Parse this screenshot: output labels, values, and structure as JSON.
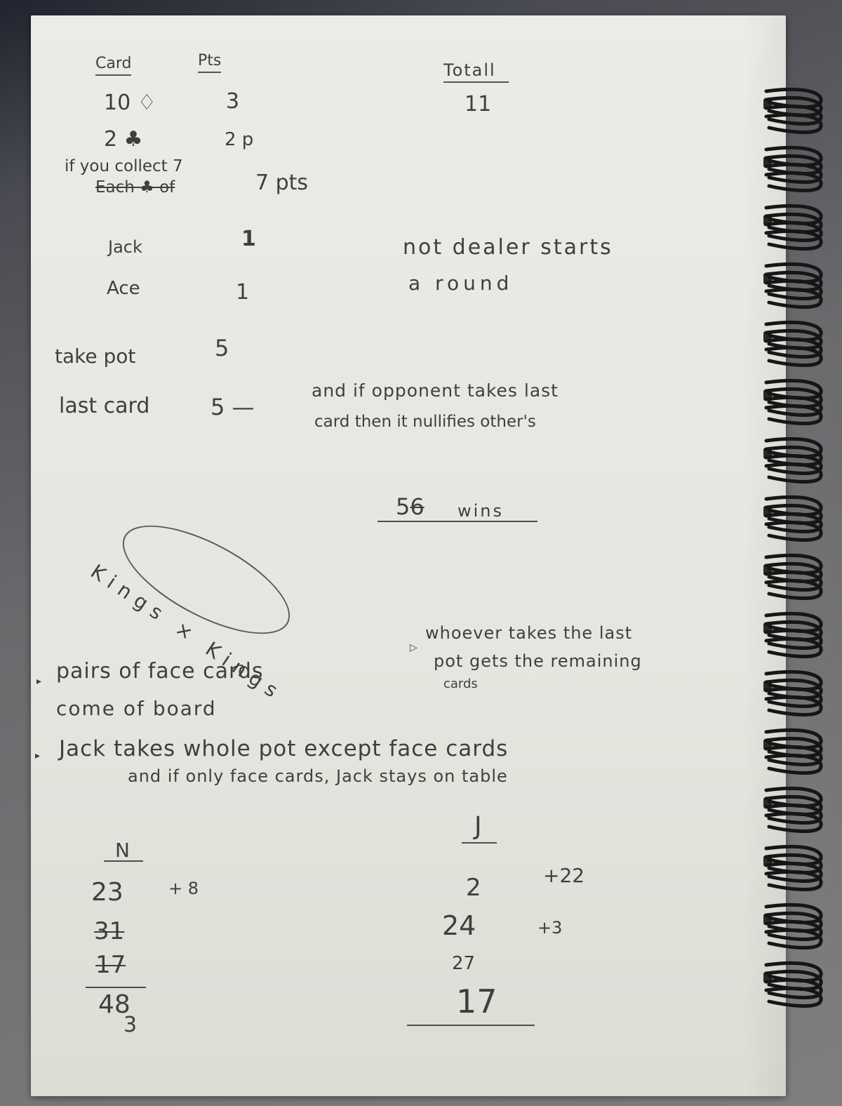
{
  "notes": {
    "col_card": "Card",
    "col_pts": "Pts",
    "col_total": "Totall",
    "total_value": "11",
    "rows": [
      {
        "card": "10 ♢",
        "pts": "3"
      },
      {
        "card": "2 ♣",
        "pts": "2 p"
      },
      {
        "card": "Jack",
        "pts": "1"
      },
      {
        "card": "Ace",
        "pts": "1"
      },
      {
        "card": "take pot",
        "pts": "5"
      },
      {
        "card": "last card",
        "pts": "5 —"
      }
    ],
    "collect_line1": "if you collect 7",
    "collect_line2": "Each ♣ of",
    "collect_pts": "7 pts",
    "dealer_line1": "not dealer starts",
    "dealer_line2": "a round",
    "last_card_note1": "and if opponent takes last",
    "last_card_note2": "card then it nullifies other's",
    "win_score_old": "6",
    "win_score": "5",
    "win_label": "wins",
    "oval_text": "Kings × Kings",
    "rule_face_pairs_1": "pairs of face cards",
    "rule_face_pairs_2": "come of board",
    "rule_last_pot_1": "whoever takes the last",
    "rule_last_pot_2": "pot gets the remaining",
    "rule_last_pot_3": "cards",
    "rule_jack_1": "Jack takes whole pot except face cards",
    "rule_jack_2": "and if only face cards, Jack stays on table"
  },
  "score_n": {
    "header": "N",
    "entries": [
      "23",
      "31",
      "17",
      "48",
      "3"
    ],
    "increment": "+ 8"
  },
  "score_j": {
    "header": "J",
    "entries": [
      "2",
      "24",
      "27",
      "17"
    ],
    "increments": [
      "+22",
      "+3"
    ]
  }
}
